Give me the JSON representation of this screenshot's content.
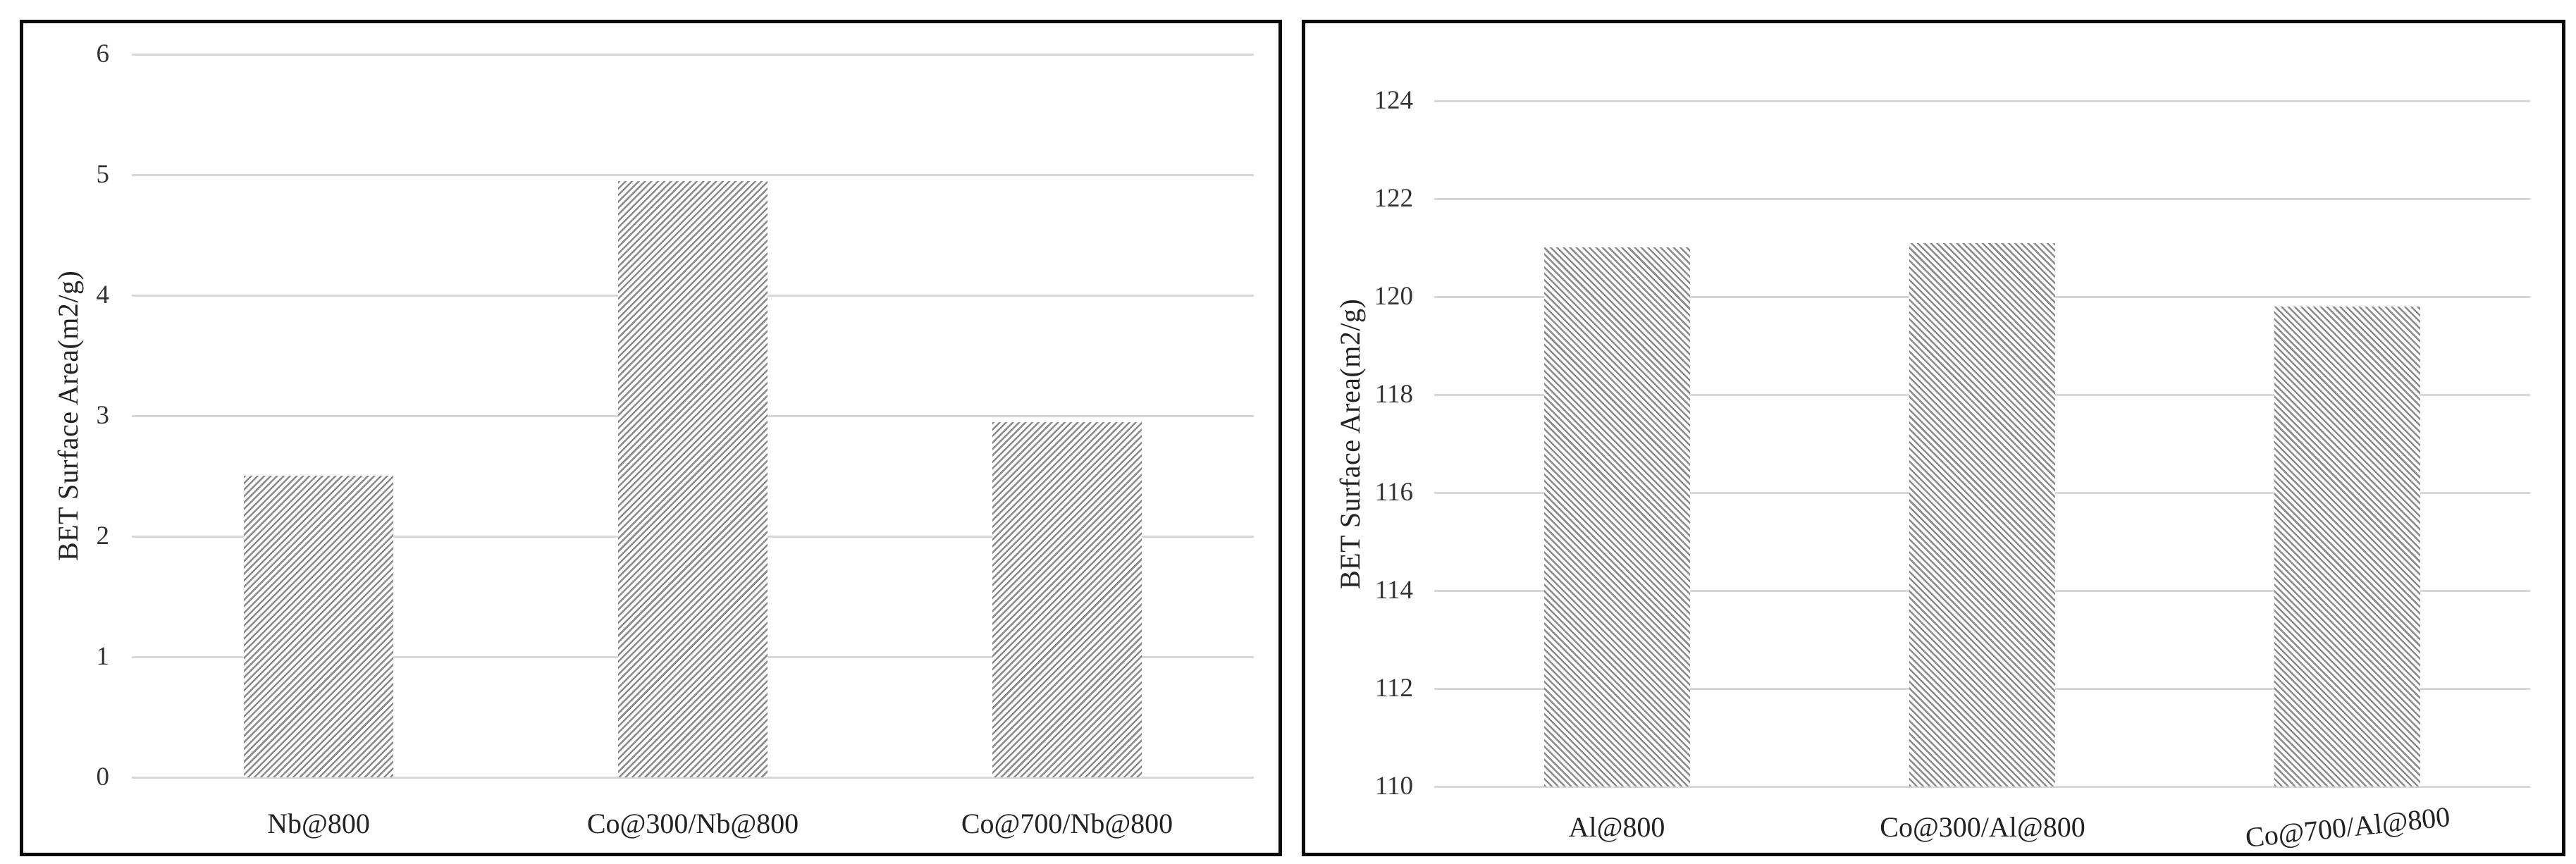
{
  "colors": {
    "background": "#ffffff",
    "panel_border": "#0a0a0a",
    "gridline": "#d8d8d8",
    "hatch_line": "#8a8a8a",
    "text": "#333333"
  },
  "chart_data": [
    {
      "type": "bar",
      "panel": "left",
      "title": "",
      "xlabel": "",
      "ylabel": "BET Surface Area(m2/g)",
      "categories": [
        "Nb@800",
        "Co@300/Nb@800",
        "Co@700/Nb@800"
      ],
      "values": [
        2.5,
        4.95,
        2.95
      ],
      "ylim": [
        0,
        6
      ],
      "ytick_step": 1,
      "yticks": [
        0,
        1,
        2,
        3,
        4,
        5,
        6
      ],
      "grid": true,
      "legend": false,
      "hatch": "forward-diagonal",
      "last_label_rotation_deg": 0
    },
    {
      "type": "bar",
      "panel": "right",
      "title": "",
      "xlabel": "",
      "ylabel": "BET Surface Area(m2/g)",
      "categories": [
        "Al@800",
        "Co@300/Al@800",
        "Co@700/Al@800"
      ],
      "values": [
        121.0,
        121.1,
        119.8
      ],
      "ylim": [
        110,
        124
      ],
      "ytick_step": 2,
      "yticks": [
        110,
        112,
        114,
        116,
        118,
        120,
        122,
        124
      ],
      "grid": true,
      "legend": false,
      "hatch": "back-diagonal",
      "last_label_rotation_deg": -6
    }
  ]
}
